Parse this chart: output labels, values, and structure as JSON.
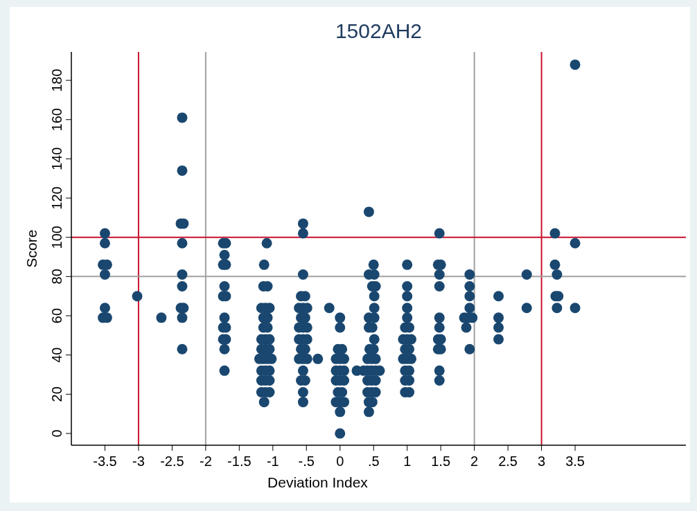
{
  "chart_data": {
    "type": "scatter",
    "title": "1502AH2",
    "xlabel": "Deviation Index",
    "ylabel": "Score",
    "xlim": [
      -4,
      5.15
    ],
    "ylim": [
      -6,
      194.5
    ],
    "xticks": [
      -3.5,
      -3,
      -2.5,
      -2,
      -1.5,
      -1,
      {
        "value": -0.5,
        "label": "-.5"
      },
      0,
      {
        "value": 0.5,
        "label": ".5"
      },
      1,
      1.5,
      2,
      2.5,
      3,
      3.5
    ],
    "yticks": [
      0,
      20,
      40,
      60,
      80,
      100,
      120,
      140,
      160,
      180
    ],
    "grid": false,
    "marker": "circle",
    "ref_lines": [
      {
        "axis": "x",
        "value": -3,
        "color": "#c8102e"
      },
      {
        "axis": "x",
        "value": 3,
        "color": "#c8102e"
      },
      {
        "axis": "x",
        "value": -2,
        "color": "#a0a0a0"
      },
      {
        "axis": "x",
        "value": 2,
        "color": "#a0a0a0"
      },
      {
        "axis": "y",
        "value": 100,
        "color": "#c8102e"
      },
      {
        "axis": "y",
        "value": 80,
        "color": "#a0a0a0"
      }
    ],
    "series": [
      {
        "color": "#1a476f",
        "x": [
          -3.5,
          -3.5,
          -3.53,
          -3.47,
          -3.5,
          -3.5,
          -3.53,
          -3.47,
          -3.02,
          -2.66,
          -2.35,
          -2.35,
          -2.37,
          -2.33,
          -2.35,
          -2.35,
          -2.35,
          -2.37,
          -2.33,
          -2.35,
          -2.35,
          -1.74,
          -1.7,
          -1.72,
          -1.74,
          -1.7,
          -1.72,
          -1.74,
          -1.7,
          -1.72,
          -1.74,
          -1.7,
          -1.74,
          -1.7,
          -1.72,
          -1.72,
          -1.09,
          -1.13,
          -1.14,
          -1.08,
          -1.17,
          -1.11,
          -1.05,
          -1.14,
          -1.08,
          -1.14,
          -1.08,
          -1.17,
          -1.11,
          -1.05,
          -1.17,
          -1.11,
          -1.05,
          -1.2,
          -1.14,
          -1.08,
          -1.02,
          -1.17,
          -1.11,
          -1.05,
          -1.17,
          -1.11,
          -1.05,
          -1.17,
          -1.11,
          -1.05,
          -1.13,
          -0.55,
          -0.55,
          -0.55,
          -0.58,
          -0.52,
          -0.61,
          -0.55,
          -0.49,
          -0.58,
          -0.52,
          -0.61,
          -0.55,
          -0.49,
          -0.61,
          -0.55,
          -0.49,
          -0.58,
          -0.52,
          -0.61,
          -0.55,
          -0.49,
          -0.55,
          -0.58,
          -0.52,
          -0.55,
          -0.55,
          -0.33,
          -0.16,
          0,
          0,
          -0.03,
          0.03,
          -0.06,
          0,
          0.06,
          -0.06,
          0,
          0.06,
          -0.06,
          0,
          0.06,
          -0.03,
          0.03,
          -0.06,
          0,
          0.06,
          0,
          0,
          0.25,
          0.43,
          0.5,
          0.43,
          0.51,
          0.48,
          0.53,
          0.51,
          0.51,
          0.43,
          0.51,
          0.43,
          0.48,
          0.51,
          0.44,
          0.5,
          0.41,
          0.47,
          0.53,
          0.35,
          0.41,
          0.47,
          0.53,
          0.59,
          0.41,
          0.47,
          0.53,
          0.41,
          0.47,
          0.53,
          0.43,
          0.48,
          0.43,
          1,
          1,
          1,
          1,
          1,
          0.97,
          1.03,
          0.94,
          1,
          1.06,
          0.97,
          1.03,
          0.94,
          1,
          1.06,
          0.97,
          1.03,
          0.97,
          1.03,
          0.97,
          1.03,
          1.48,
          1.46,
          1.5,
          1.48,
          1.48,
          1.48,
          1.48,
          1.46,
          1.5,
          1.46,
          1.5,
          1.48,
          1.48,
          1.93,
          1.93,
          1.93,
          1.93,
          1.85,
          1.91,
          1.97,
          1.88,
          1.93,
          2.36,
          2.36,
          2.36,
          2.36,
          2.78,
          2.78,
          3.2,
          3.2,
          3.23,
          3.21,
          3.25,
          3.23,
          3.5,
          3.5,
          3.5
        ],
        "values": [
          102,
          97,
          86,
          86,
          81,
          64,
          59,
          59,
          70,
          59,
          161,
          134,
          107,
          107,
          97,
          81,
          75,
          64,
          64,
          59,
          43,
          97,
          97,
          91,
          86,
          86,
          75,
          70,
          70,
          59,
          54,
          54,
          48,
          48,
          43,
          32,
          97,
          86,
          75,
          75,
          64,
          64,
          64,
          59,
          59,
          54,
          54,
          48,
          48,
          48,
          43,
          43,
          43,
          38,
          38,
          38,
          38,
          32,
          32,
          32,
          27,
          27,
          27,
          21,
          21,
          21,
          16,
          107,
          102,
          81,
          70,
          70,
          64,
          64,
          64,
          59,
          59,
          54,
          54,
          54,
          48,
          48,
          48,
          43,
          43,
          38,
          38,
          38,
          32,
          27,
          27,
          21,
          16,
          38,
          64,
          59,
          54,
          43,
          43,
          38,
          38,
          38,
          32,
          32,
          32,
          27,
          27,
          27,
          21,
          21,
          16,
          16,
          16,
          11,
          0,
          32,
          113,
          86,
          81,
          81,
          75,
          75,
          70,
          64,
          59,
          59,
          54,
          54,
          48,
          43,
          43,
          38,
          38,
          38,
          32,
          32,
          32,
          32,
          32,
          27,
          27,
          27,
          21,
          21,
          21,
          16,
          16,
          11,
          86,
          75,
          70,
          64,
          59,
          54,
          54,
          48,
          48,
          48,
          43,
          43,
          38,
          38,
          38,
          32,
          32,
          27,
          27,
          21,
          21,
          102,
          86,
          86,
          81,
          75,
          59,
          54,
          48,
          48,
          43,
          43,
          32,
          27,
          81,
          75,
          70,
          64,
          59,
          59,
          59,
          54,
          43,
          70,
          59,
          54,
          48,
          81,
          64,
          102,
          86,
          81,
          70,
          70,
          64,
          188,
          97,
          64
        ]
      }
    ]
  }
}
